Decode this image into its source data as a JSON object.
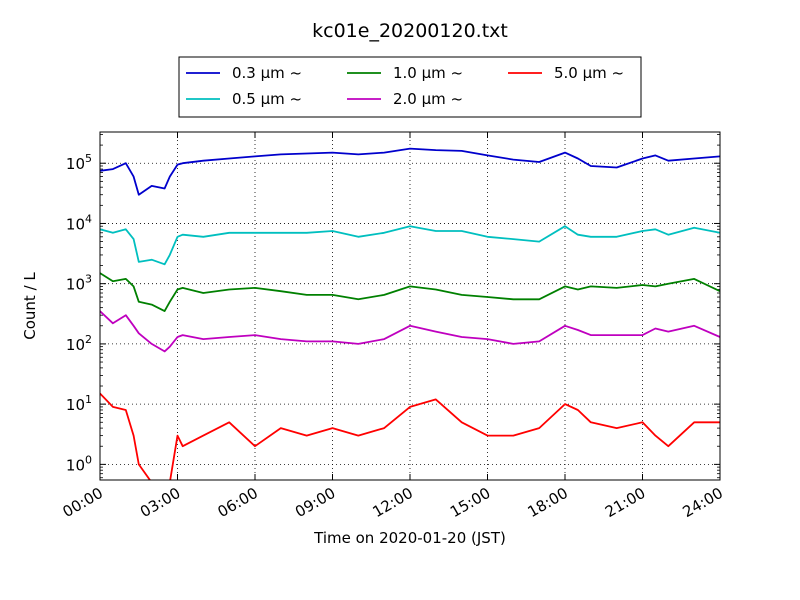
{
  "chart_data": {
    "type": "line",
    "title": "kc01e_20200120.txt",
    "xlabel": "Time on 2020-01-20 (JST)",
    "ylabel": "Count / L",
    "yscale": "log",
    "xlim": [
      0,
      24
    ],
    "ylim": [
      0.55,
      330000
    ],
    "x_ticks": [
      "00:00",
      "03:00",
      "06:00",
      "09:00",
      "12:00",
      "15:00",
      "18:00",
      "21:00",
      "24:00"
    ],
    "y_ticks": [
      {
        "value": 1,
        "base": "10",
        "exp": "0"
      },
      {
        "value": 10,
        "base": "10",
        "exp": "1"
      },
      {
        "value": 100,
        "base": "10",
        "exp": "2"
      },
      {
        "value": 1000,
        "base": "10",
        "exp": "3"
      },
      {
        "value": 10000,
        "base": "10",
        "exp": "4"
      },
      {
        "value": 100000,
        "base": "10",
        "exp": "5"
      }
    ],
    "grid": true,
    "legend_position": "top-center",
    "x": [
      0,
      0.5,
      1,
      1.3,
      1.5,
      2,
      2.5,
      2.7,
      3,
      3.2,
      4,
      5,
      6,
      7,
      8,
      9,
      10,
      11,
      12,
      13,
      14,
      15,
      16,
      17,
      18,
      18.5,
      19,
      20,
      21,
      21.5,
      22,
      23,
      24
    ],
    "series": [
      {
        "name": "0.3 μm  ~",
        "color": "#0000cc",
        "values": [
          75000,
          80000,
          100000,
          60000,
          30000,
          42000,
          38000,
          60000,
          95000,
          100000,
          110000,
          120000,
          130000,
          140000,
          145000,
          150000,
          140000,
          150000,
          175000,
          165000,
          160000,
          135000,
          115000,
          105000,
          150000,
          120000,
          90000,
          85000,
          120000,
          135000,
          110000,
          120000,
          130000
        ]
      },
      {
        "name": "0.5 μm  ~",
        "color": "#00bfbf",
        "values": [
          8000,
          7000,
          8000,
          5500,
          2300,
          2500,
          2100,
          3000,
          6000,
          6500,
          6000,
          7000,
          7000,
          7000,
          7000,
          7500,
          6000,
          7000,
          9000,
          7500,
          7500,
          6000,
          5500,
          5000,
          9000,
          6500,
          6000,
          6000,
          7500,
          8000,
          6500,
          8500,
          7000
        ]
      },
      {
        "name": "1.0 μm  ~",
        "color": "#008000",
        "values": [
          1500,
          1100,
          1200,
          900,
          500,
          450,
          350,
          500,
          800,
          850,
          700,
          800,
          850,
          750,
          650,
          650,
          550,
          650,
          900,
          800,
          650,
          600,
          550,
          550,
          900,
          800,
          900,
          850,
          950,
          900,
          1000,
          1200,
          750
        ]
      },
      {
        "name": "2.0 μm  ~",
        "color": "#bf00bf",
        "values": [
          350,
          220,
          300,
          200,
          150,
          100,
          75,
          90,
          130,
          140,
          120,
          130,
          140,
          120,
          110,
          110,
          100,
          120,
          200,
          160,
          130,
          120,
          100,
          110,
          200,
          170,
          140,
          140,
          140,
          180,
          160,
          200,
          130
        ]
      },
      {
        "name": "5.0 μm  ~",
        "color": "#ff0000",
        "values": [
          15,
          9,
          8,
          3,
          1,
          0.5,
          0.5,
          0.5,
          3,
          2,
          3,
          5,
          2,
          4,
          3,
          4,
          3,
          4,
          9,
          12,
          5,
          3,
          3,
          4,
          10,
          8,
          5,
          4,
          5,
          3,
          2,
          5,
          5
        ]
      }
    ]
  }
}
